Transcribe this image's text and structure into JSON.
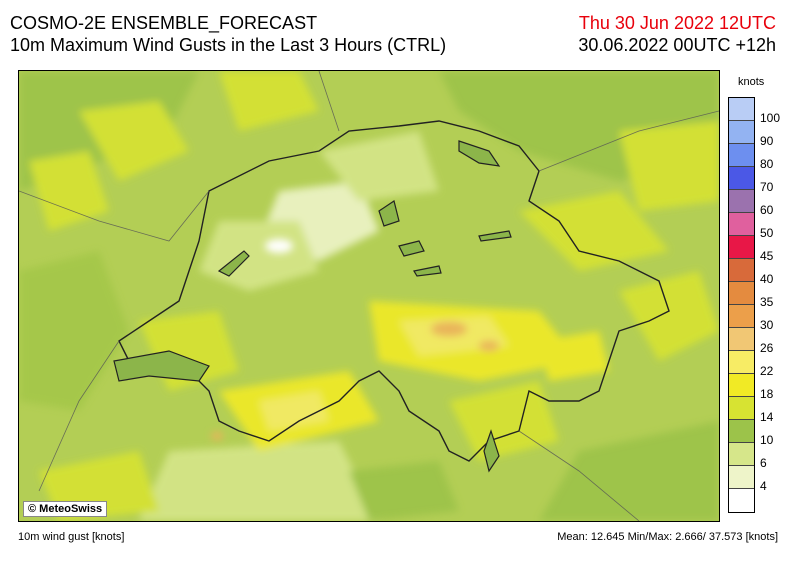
{
  "header": {
    "title_line1": "COSMO-2E ENSEMBLE_FORECAST",
    "title_line2": "10m Maximum Wind Gusts in the Last 3 Hours (CTRL)",
    "valid_time": "Thu 30 Jun 2022 12UTC",
    "run_time": "30.06.2022 00UTC +12h"
  },
  "map": {
    "credit": "© MeteoSwiss"
  },
  "legend": {
    "unit": "knots",
    "levels": [
      {
        "label": "100",
        "color": "#b9cdf5"
      },
      {
        "label": "90",
        "color": "#93b3f2"
      },
      {
        "label": "80",
        "color": "#6d8fef"
      },
      {
        "label": "70",
        "color": "#4b58e6"
      },
      {
        "label": "60",
        "color": "#9b72ae"
      },
      {
        "label": "50",
        "color": "#e0609e"
      },
      {
        "label": "45",
        "color": "#e81747"
      },
      {
        "label": "40",
        "color": "#d86a3a"
      },
      {
        "label": "35",
        "color": "#e48b3f"
      },
      {
        "label": "30",
        "color": "#ec9f4a"
      },
      {
        "label": "26",
        "color": "#f1c774"
      },
      {
        "label": "22",
        "color": "#f7ec65"
      },
      {
        "label": "18",
        "color": "#f1ea25"
      },
      {
        "label": "14",
        "color": "#d7e332"
      },
      {
        "label": "10",
        "color": "#9cc34a"
      },
      {
        "label": "6",
        "color": "#d6e68a"
      },
      {
        "label": "4",
        "color": "#eef4c9"
      },
      {
        "label": "",
        "color": "#ffffff"
      }
    ]
  },
  "footer": {
    "variable": "10m wind gust [knots]",
    "stats": "Mean: 12.645 Min/Max:  2.666/ 37.573 [knots]"
  }
}
